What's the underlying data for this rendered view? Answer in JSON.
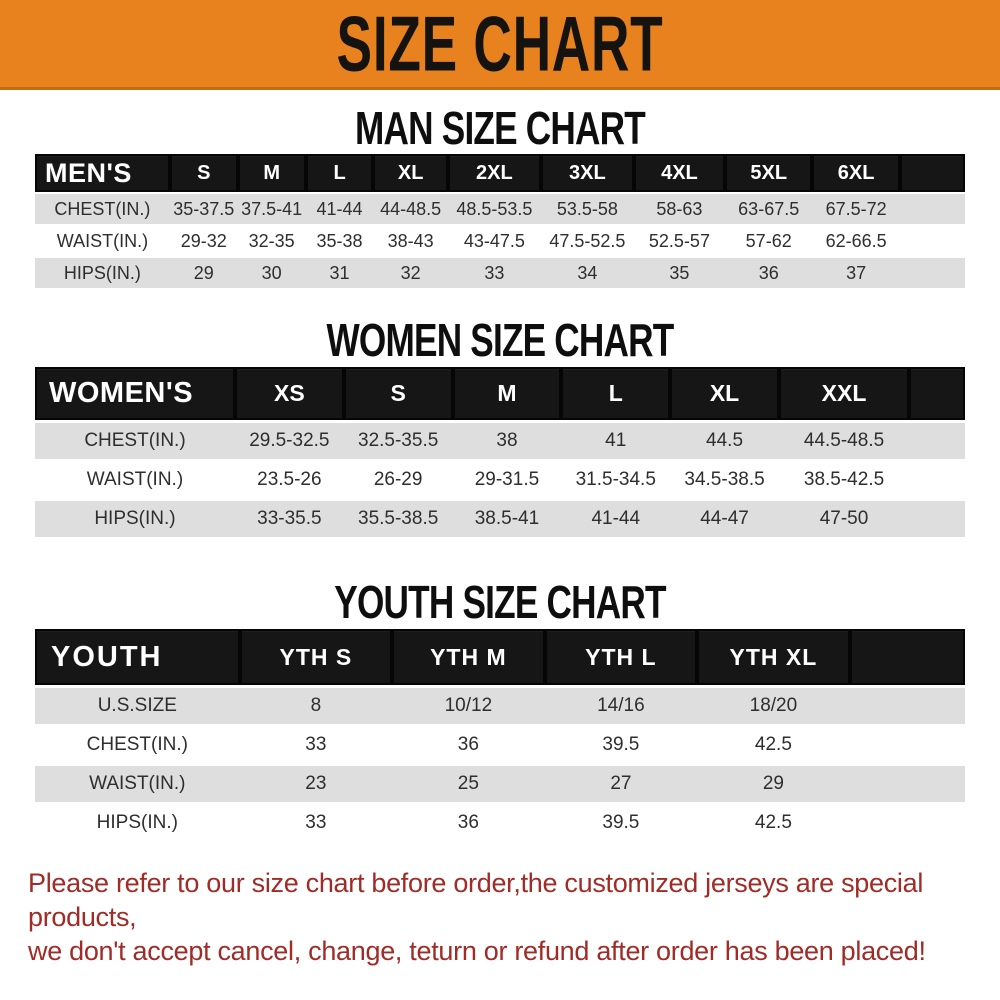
{
  "banner": {
    "title": "SIZE CHART"
  },
  "sections": [
    {
      "title": "MAN SIZE CHART",
      "header_label": "MEN'S",
      "columns": [
        "S",
        "M",
        "L",
        "XL",
        "2XL",
        "3XL",
        "4XL",
        "5XL",
        "6XL"
      ],
      "rows": [
        {
          "label": "CHEST(IN.)",
          "values": [
            "35-37.5",
            "37.5-41",
            "41-44",
            "44-48.5",
            "48.5-53.5",
            "53.5-58",
            "58-63",
            "63-67.5",
            "67.5-72"
          ]
        },
        {
          "label": "WAIST(IN.)",
          "values": [
            "29-32",
            "32-35",
            "35-38",
            "38-43",
            "43-47.5",
            "47.5-52.5",
            "52.5-57",
            "57-62",
            "62-66.5"
          ]
        },
        {
          "label": "HIPS(IN.)",
          "values": [
            "29",
            "30",
            "31",
            "32",
            "33",
            "34",
            "35",
            "36",
            "37"
          ]
        }
      ]
    },
    {
      "title": "WOMEN SIZE CHART",
      "header_label": "WOMEN'S",
      "columns": [
        "XS",
        "S",
        "M",
        "L",
        "XL",
        "XXL"
      ],
      "rows": [
        {
          "label": "CHEST(IN.)",
          "values": [
            "29.5-32.5",
            "32.5-35.5",
            "38",
            "41",
            "44.5",
            "44.5-48.5"
          ]
        },
        {
          "label": "WAIST(IN.)",
          "values": [
            "23.5-26",
            "26-29",
            "29-31.5",
            "31.5-34.5",
            "34.5-38.5",
            "38.5-42.5"
          ]
        },
        {
          "label": "HIPS(IN.)",
          "values": [
            "33-35.5",
            "35.5-38.5",
            "38.5-41",
            "41-44",
            "44-47",
            "47-50"
          ]
        }
      ]
    },
    {
      "title": "YOUTH SIZE CHART",
      "header_label": "YOUTH",
      "columns": [
        "YTH S",
        "YTH M",
        "YTH L",
        "YTH XL"
      ],
      "rows": [
        {
          "label": "U.S.SIZE",
          "values": [
            "8",
            "10/12",
            "14/16",
            "18/20"
          ]
        },
        {
          "label": "CHEST(IN.)",
          "values": [
            "33",
            "36",
            "39.5",
            "42.5"
          ]
        },
        {
          "label": "WAIST(IN.)",
          "values": [
            "23",
            "25",
            "27",
            "29"
          ]
        },
        {
          "label": "HIPS(IN.)",
          "values": [
            "33",
            "36",
            "39.5",
            "42.5"
          ]
        }
      ]
    }
  ],
  "footer": {
    "line1": "Please refer to our size chart before order,the customized jerseys are special products,",
    "line2": "we don't accept cancel, change, teturn or refund after order has been placed!"
  },
  "colors": {
    "banner_bg": "#E8821E",
    "banner_edge": "#C06E12",
    "header_bar_bg": "#161616",
    "header_bar_text": "#FFFFFF",
    "row_alt_bg": "#DEDEDE",
    "row_text": "#2E2E2E",
    "footer_text": "#A12B26"
  }
}
